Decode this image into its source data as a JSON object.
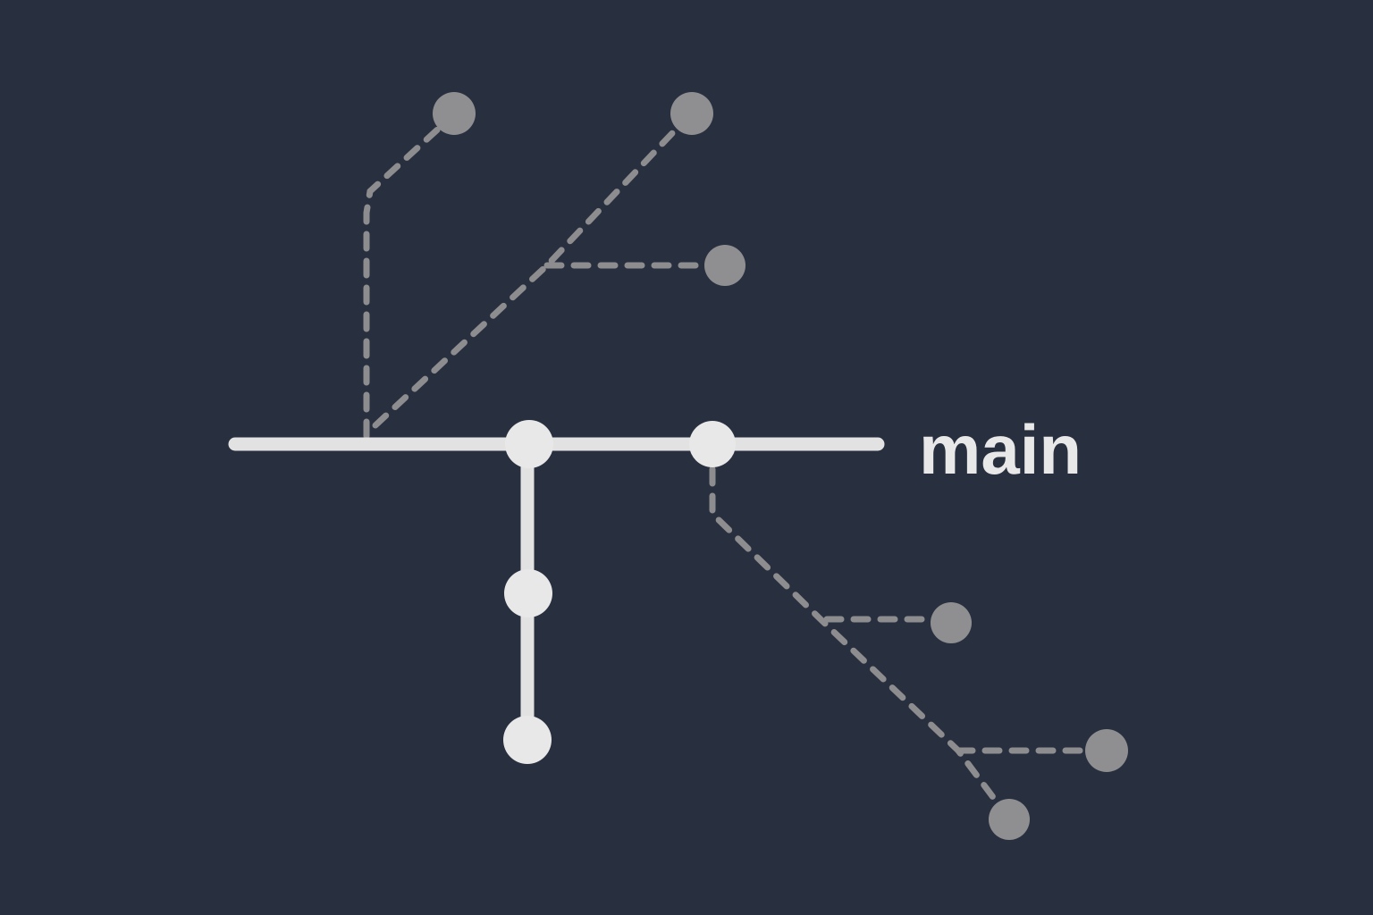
{
  "background_color": "#282f3e",
  "colors": {
    "main_branch": "#e2e2e2",
    "main_commit": "#e8e8e8",
    "side_branch": "#8d8d8f",
    "side_commit": "#8f8f92"
  },
  "main_branch": {
    "label": "main"
  },
  "legend_icon": "git-branch-graph"
}
